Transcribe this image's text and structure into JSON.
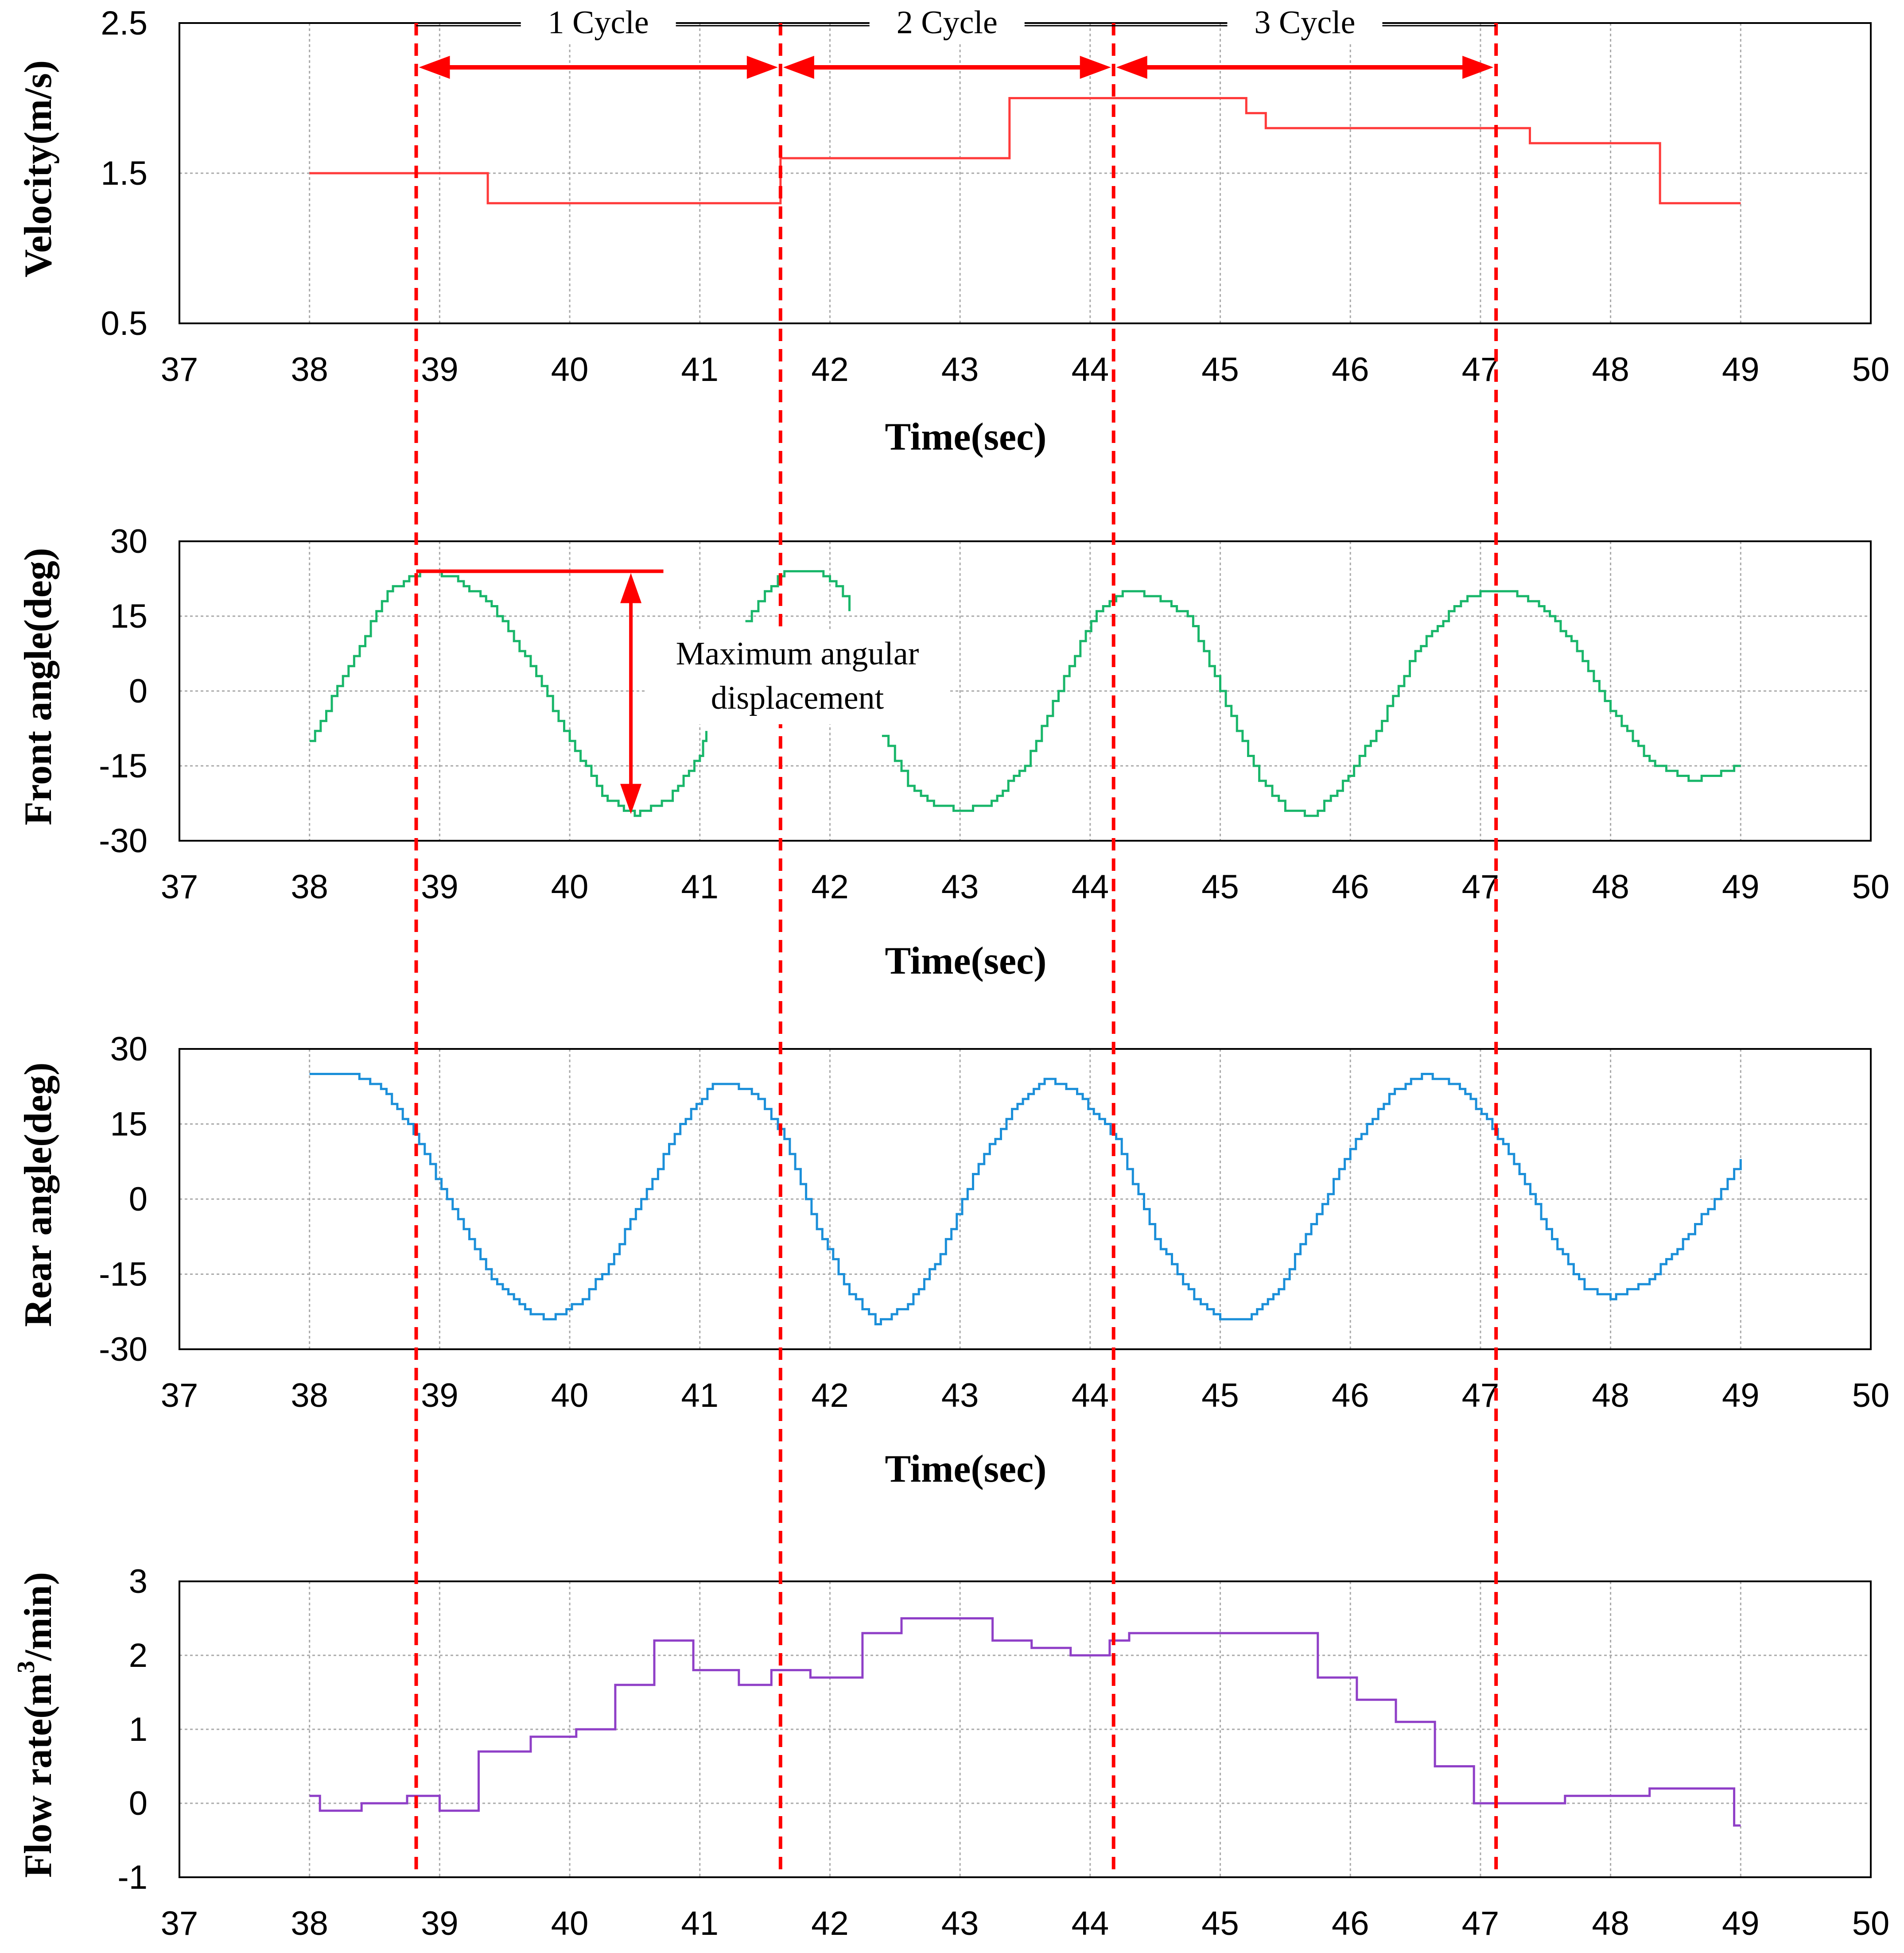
{
  "colors": {
    "velocity": "#ff3b3b",
    "front": "#19b66a",
    "rear": "#1b8fd9",
    "flow": "#8f3fc7",
    "cycle": "#ff0000",
    "grid": "#a9a9a9"
  },
  "cycle_markers": {
    "times": [
      38.82,
      41.62,
      44.18,
      47.12
    ],
    "labels": [
      "1 Cycle",
      "2 Cycle",
      "3 Cycle"
    ]
  },
  "annotation": {
    "line1": "Maximum angular",
    "line2": "displacement",
    "top_value": 24,
    "bottom_value": -25,
    "at_time": 40.47,
    "bar_from": 38.82,
    "bar_to": 40.72
  },
  "chart_data": [
    {
      "type": "line",
      "ylabel": "Velocity(m/s)",
      "xlabel": "Time(sec)",
      "xlim": [
        37,
        50
      ],
      "ylim": [
        0.5,
        2.5
      ],
      "xticks": [
        "37",
        "38",
        "39",
        "40",
        "41",
        "42",
        "43",
        "44",
        "45",
        "46",
        "47",
        "48",
        "49",
        "50"
      ],
      "yticks": [
        "2.5",
        "1.5",
        "0.5"
      ],
      "yticks_values": [
        2.5,
        1.5,
        0.5
      ],
      "grid_y": [
        1.5
      ],
      "series": [
        {
          "name": "velocity",
          "step": true,
          "x": [
            38.0,
            39.37,
            41.62,
            43.38,
            45.2,
            45.35,
            47.38,
            48.38,
            49.0
          ],
          "y": [
            1.5,
            1.3,
            1.6,
            2.0,
            1.9,
            1.8,
            1.7,
            1.3,
            1.3
          ]
        }
      ]
    },
    {
      "type": "line",
      "ylabel": "Front angle(deg)",
      "xlabel": "Time(sec)",
      "xlim": [
        37,
        50
      ],
      "ylim": [
        -30,
        30
      ],
      "xticks": [
        "37",
        "38",
        "39",
        "40",
        "41",
        "42",
        "43",
        "44",
        "45",
        "46",
        "47",
        "48",
        "49",
        "50"
      ],
      "yticks": [
        "30",
        "15",
        "0",
        "-15",
        "-30"
      ],
      "yticks_values": [
        30,
        15,
        0,
        -15,
        -30
      ],
      "grid_y": [
        15,
        0,
        -15
      ],
      "series": [
        {
          "name": "front-seg-1",
          "x": [
            38.0,
            38.3,
            38.6,
            38.85,
            39.1,
            39.4,
            39.7,
            40.0,
            40.25,
            40.5,
            40.75,
            41.0,
            41.05
          ],
          "y": [
            -10,
            5,
            20,
            24,
            23,
            17,
            5,
            -10,
            -21,
            -25,
            -22,
            -13,
            -8
          ]
        },
        {
          "name": "front-seg-2",
          "x": [
            41.35,
            41.5,
            41.65,
            41.9,
            42.05,
            42.15
          ],
          "y": [
            14,
            20,
            24,
            24,
            21,
            16
          ]
        },
        {
          "name": "front-seg-3",
          "x": [
            42.4,
            42.6,
            42.8,
            43.0,
            43.2,
            43.5,
            43.8,
            44.05,
            44.25,
            44.5,
            44.75,
            45.0,
            45.3,
            45.5,
            45.7,
            45.9,
            46.2,
            46.5,
            46.8,
            47.0,
            47.2,
            47.45,
            47.7,
            48.0,
            48.3,
            48.6,
            48.8,
            49.0
          ],
          "y": [
            -9,
            -19,
            -23,
            -24,
            -23,
            -15,
            3,
            16,
            20,
            19,
            15,
            0,
            -18,
            -24,
            -25,
            -20,
            -8,
            8,
            17,
            20,
            20,
            17,
            10,
            -4,
            -14,
            -18,
            -17,
            -15
          ]
        }
      ]
    },
    {
      "type": "line",
      "ylabel": "Rear angle(deg)",
      "xlabel": "Time(sec)",
      "xlim": [
        37,
        50
      ],
      "ylim": [
        -30,
        30
      ],
      "xticks": [
        "37",
        "38",
        "39",
        "40",
        "41",
        "42",
        "43",
        "44",
        "45",
        "46",
        "47",
        "48",
        "49",
        "50"
      ],
      "yticks": [
        "30",
        "15",
        "0",
        "-15",
        "-30"
      ],
      "yticks_values": [
        30,
        15,
        0,
        -15,
        -30
      ],
      "grid_y": [
        15,
        0,
        -15
      ],
      "series": [
        {
          "name": "rear",
          "x": [
            38.0,
            38.3,
            38.55,
            38.8,
            39.1,
            39.4,
            39.7,
            39.85,
            40.1,
            40.3,
            40.55,
            40.85,
            41.1,
            41.25,
            41.45,
            41.65,
            41.9,
            42.15,
            42.35,
            42.6,
            42.85,
            43.1,
            43.4,
            43.65,
            43.9,
            44.2,
            44.5,
            44.8,
            45.0,
            45.2,
            45.45,
            45.7,
            46.0,
            46.3,
            46.55,
            46.8,
            47.05,
            47.3,
            47.55,
            47.8,
            48.0,
            48.3,
            48.6,
            48.8,
            49.0
          ],
          "y": [
            25,
            25,
            22,
            13,
            -2,
            -16,
            -23,
            -24,
            -20,
            -13,
            0,
            15,
            23,
            23,
            20,
            12,
            -6,
            -19,
            -25,
            -21,
            -11,
            5,
            18,
            24,
            21,
            12,
            -8,
            -20,
            -24,
            -24,
            -18,
            -5,
            10,
            21,
            25,
            23,
            16,
            5,
            -8,
            -18,
            -20,
            -16,
            -7,
            0,
            8
          ]
        }
      ]
    },
    {
      "type": "line",
      "ylabel": "Flow rate(m3/min)",
      "xlabel": "",
      "xlim": [
        37,
        50
      ],
      "ylim": [
        -1,
        3
      ],
      "xticks": [
        "37",
        "38",
        "39",
        "40",
        "41",
        "42",
        "43",
        "44",
        "45",
        "46",
        "47",
        "48",
        "49",
        "50"
      ],
      "yticks": [
        "3",
        "2",
        "1",
        "0",
        "-1"
      ],
      "yticks_values": [
        3,
        2,
        1,
        0,
        -1
      ],
      "grid_y": [
        2,
        1,
        0
      ],
      "series": [
        {
          "name": "flow",
          "step": true,
          "x": [
            38.0,
            38.08,
            38.4,
            38.75,
            39.0,
            39.3,
            39.7,
            40.05,
            40.35,
            40.65,
            40.95,
            41.3,
            41.55,
            41.85,
            42.25,
            42.55,
            42.95,
            43.25,
            43.55,
            43.85,
            44.15,
            44.3,
            45.75,
            46.05,
            46.35,
            46.65,
            46.95,
            47.65,
            48.3,
            48.95,
            49.0
          ],
          "y": [
            0.1,
            -0.1,
            0.0,
            0.1,
            -0.1,
            0.7,
            0.9,
            1.0,
            1.6,
            2.2,
            1.8,
            1.6,
            1.8,
            1.7,
            2.3,
            2.5,
            2.5,
            2.2,
            2.1,
            2.0,
            2.2,
            2.3,
            1.7,
            1.4,
            1.1,
            0.5,
            0.0,
            0.1,
            0.2,
            -0.3,
            -0.3
          ]
        }
      ]
    }
  ]
}
